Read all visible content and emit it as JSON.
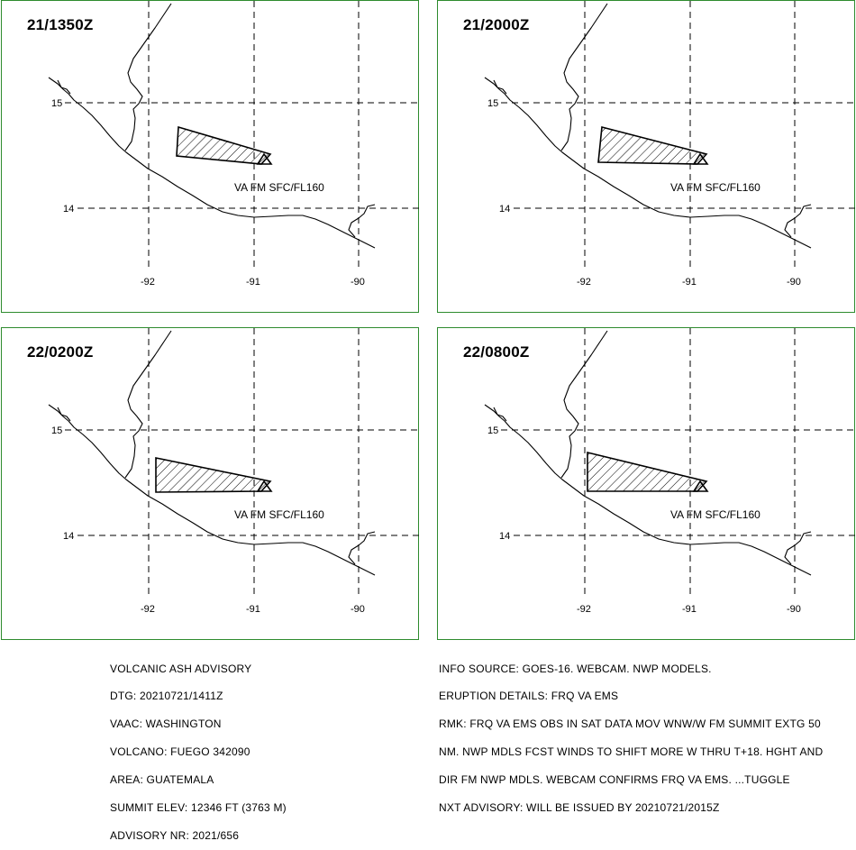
{
  "panels": [
    {
      "time": "21/1350Z",
      "ash_label": "VA FM SFC/FL160",
      "ash_shape": "narrow"
    },
    {
      "time": "21/2000Z",
      "ash_label": "VA FM SFC/FL160",
      "ash_shape": "medium"
    },
    {
      "time": "22/0200Z",
      "ash_label": "VA FM SFC/FL160",
      "ash_shape": "wide"
    },
    {
      "time": "22/0800Z",
      "ash_label": "VA FM SFC/FL160",
      "ash_shape": "wider"
    }
  ],
  "grid": {
    "lat_labels": [
      "15",
      "14"
    ],
    "lon_labels": [
      "-92",
      "-91",
      "-90"
    ]
  },
  "advisory_left": [
    "VOLCANIC ASH ADVISORY",
    "DTG: 20210721/1411Z",
    "VAAC: WASHINGTON",
    "VOLCANO: FUEGO 342090",
    "AREA: GUATEMALA",
    "SUMMIT ELEV: 12346 FT (3763 M)",
    "ADVISORY NR: 2021/656"
  ],
  "advisory_right": [
    "INFO SOURCE: GOES-16. WEBCAM. NWP MODELS.",
    "ERUPTION DETAILS: FRQ VA EMS",
    "RMK: FRQ VA EMS OBS IN SAT DATA MOV WNW/W FM SUMMIT EXTG 50",
    "NM. NWP MDLS FCST WINDS TO SHIFT MORE W THRU T+18. HGHT AND",
    "DIR FM NWP MDLS. WEBCAM CONFIRMS FRQ VA EMS. ...TUGGLE",
    "NXT ADVISORY: WILL BE ISSUED BY 20210721/2015Z"
  ]
}
